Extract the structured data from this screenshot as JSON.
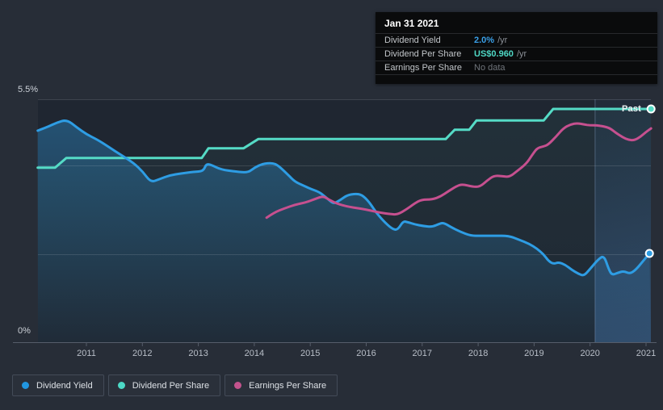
{
  "colors": {
    "background": "#272d37",
    "plot_background": "#1f2631",
    "accent_blue": "#2e9de4",
    "accent_teal": "#55dbc6",
    "accent_pink": "#c6508f",
    "tooltip_background": "#0a0b0c",
    "tooltip_value_blue": "#3aa0e8",
    "tooltip_value_teal": "#4fd8c5",
    "tooltip_no_data_gray": "#70757b"
  },
  "tooltip": {
    "date": "Jan 31 2021",
    "rows": [
      {
        "label": "Dividend Yield",
        "value": "2.0%",
        "suffix": "/yr",
        "value_color": "#3aa0e8"
      },
      {
        "label": "Dividend Per Share",
        "value": "US$0.960",
        "suffix": "/yr",
        "value_color": "#4fd8c5"
      },
      {
        "label": "Earnings Per Share",
        "value": "No data",
        "suffix": "",
        "value_color": "#70757b"
      }
    ]
  },
  "legend": [
    {
      "label": "Dividend Yield",
      "color": "#2196e0"
    },
    {
      "label": "Dividend Per Share",
      "color": "#4cd9c6"
    },
    {
      "label": "Earnings Per Share",
      "color": "#c3538d"
    }
  ],
  "chart_data": {
    "type": "line",
    "past_label": "Past",
    "grid": true,
    "legend_position": "bottom-left",
    "y_axis": {
      "min": 0,
      "max": 5.5,
      "min_label": "0%",
      "max_label": "5.5%",
      "gridline_values": [
        5.5,
        4.0,
        2.0,
        0
      ]
    },
    "x_axis": {
      "ticks": [
        2011,
        2012,
        2013,
        2014,
        2015,
        2016,
        2017,
        2018,
        2019,
        2020,
        2021
      ],
      "start": 2010.13,
      "end": 2021.09,
      "highlight_band_start": 2020.09
    },
    "series": [
      {
        "name": "Dividend Yield",
        "unit": "%",
        "color": "#2e9de4",
        "line_style": "smooth",
        "area_fill": true,
        "end_dot": true,
        "end_value": "2.0%",
        "points": [
          [
            2010.13,
            4.79
          ],
          [
            2010.32,
            4.88
          ],
          [
            2010.47,
            4.97
          ],
          [
            2010.65,
            5.04
          ],
          [
            2010.83,
            4.86
          ],
          [
            2011.01,
            4.7
          ],
          [
            2011.19,
            4.59
          ],
          [
            2011.4,
            4.42
          ],
          [
            2011.62,
            4.24
          ],
          [
            2011.84,
            4.06
          ],
          [
            2012.01,
            3.86
          ],
          [
            2012.15,
            3.62
          ],
          [
            2012.3,
            3.69
          ],
          [
            2012.49,
            3.78
          ],
          [
            2012.7,
            3.82
          ],
          [
            2012.92,
            3.86
          ],
          [
            2013.09,
            3.87
          ],
          [
            2013.14,
            4.04
          ],
          [
            2013.24,
            4.01
          ],
          [
            2013.4,
            3.91
          ],
          [
            2013.68,
            3.86
          ],
          [
            2013.89,
            3.84
          ],
          [
            2014.0,
            3.95
          ],
          [
            2014.15,
            4.04
          ],
          [
            2014.32,
            4.06
          ],
          [
            2014.43,
            4.0
          ],
          [
            2014.61,
            3.78
          ],
          [
            2014.72,
            3.64
          ],
          [
            2014.87,
            3.55
          ],
          [
            2015.01,
            3.47
          ],
          [
            2015.16,
            3.4
          ],
          [
            2015.27,
            3.29
          ],
          [
            2015.37,
            3.18
          ],
          [
            2015.43,
            3.14
          ],
          [
            2015.55,
            3.23
          ],
          [
            2015.66,
            3.33
          ],
          [
            2015.81,
            3.36
          ],
          [
            2015.92,
            3.34
          ],
          [
            2016.05,
            3.18
          ],
          [
            2016.19,
            2.91
          ],
          [
            2016.34,
            2.7
          ],
          [
            2016.47,
            2.56
          ],
          [
            2016.56,
            2.54
          ],
          [
            2016.66,
            2.74
          ],
          [
            2016.74,
            2.72
          ],
          [
            2016.86,
            2.67
          ],
          [
            2017.02,
            2.63
          ],
          [
            2017.18,
            2.61
          ],
          [
            2017.32,
            2.69
          ],
          [
            2017.39,
            2.7
          ],
          [
            2017.51,
            2.61
          ],
          [
            2017.68,
            2.5
          ],
          [
            2017.87,
            2.41
          ],
          [
            2018.04,
            2.41
          ],
          [
            2018.29,
            2.41
          ],
          [
            2018.55,
            2.41
          ],
          [
            2018.73,
            2.32
          ],
          [
            2018.91,
            2.23
          ],
          [
            2019.05,
            2.12
          ],
          [
            2019.17,
            1.99
          ],
          [
            2019.25,
            1.85
          ],
          [
            2019.34,
            1.77
          ],
          [
            2019.44,
            1.81
          ],
          [
            2019.56,
            1.75
          ],
          [
            2019.67,
            1.64
          ],
          [
            2019.79,
            1.55
          ],
          [
            2019.89,
            1.5
          ],
          [
            2020.0,
            1.66
          ],
          [
            2020.15,
            1.88
          ],
          [
            2020.25,
            1.96
          ],
          [
            2020.33,
            1.66
          ],
          [
            2020.39,
            1.52
          ],
          [
            2020.49,
            1.57
          ],
          [
            2020.6,
            1.61
          ],
          [
            2020.71,
            1.55
          ],
          [
            2020.81,
            1.63
          ],
          [
            2020.93,
            1.81
          ],
          [
            2021.06,
            2.01
          ]
        ]
      },
      {
        "name": "Dividend Per Share",
        "unit": "plotted on 0-5.5 band scale",
        "color": "#55dbc6",
        "line_style": "linear",
        "area_fill": false,
        "end_dot": true,
        "end_value": "US$0.960",
        "level_values_usd": [
          0.72,
          0.76,
          0.8,
          0.84,
          0.88,
          0.92,
          0.96
        ],
        "points": [
          [
            2010.13,
            3.95
          ],
          [
            2010.44,
            3.95
          ],
          [
            2010.64,
            4.17
          ],
          [
            2013.06,
            4.17
          ],
          [
            2013.18,
            4.39
          ],
          [
            2013.81,
            4.39
          ],
          [
            2014.07,
            4.6
          ],
          [
            2017.42,
            4.6
          ],
          [
            2017.58,
            4.81
          ],
          [
            2017.84,
            4.81
          ],
          [
            2017.97,
            5.02
          ],
          [
            2019.17,
            5.02
          ],
          [
            2019.34,
            5.28
          ],
          [
            2021.09,
            5.28
          ]
        ]
      },
      {
        "name": "Earnings Per Share",
        "unit": "plotted on 0-5.5 band scale",
        "color": "#c6508f",
        "line_style": "smooth",
        "area_fill": false,
        "end_dot": false,
        "end_value": "No data",
        "points": [
          [
            2014.22,
            2.82
          ],
          [
            2014.36,
            2.94
          ],
          [
            2014.54,
            3.03
          ],
          [
            2014.72,
            3.11
          ],
          [
            2014.91,
            3.16
          ],
          [
            2015.08,
            3.24
          ],
          [
            2015.23,
            3.31
          ],
          [
            2015.33,
            3.23
          ],
          [
            2015.47,
            3.14
          ],
          [
            2015.66,
            3.07
          ],
          [
            2015.88,
            3.03
          ],
          [
            2016.08,
            2.98
          ],
          [
            2016.26,
            2.93
          ],
          [
            2016.44,
            2.9
          ],
          [
            2016.56,
            2.89
          ],
          [
            2016.72,
            3.01
          ],
          [
            2016.86,
            3.14
          ],
          [
            2016.99,
            3.23
          ],
          [
            2017.18,
            3.23
          ],
          [
            2017.33,
            3.3
          ],
          [
            2017.47,
            3.42
          ],
          [
            2017.61,
            3.53
          ],
          [
            2017.72,
            3.58
          ],
          [
            2017.9,
            3.52
          ],
          [
            2018.03,
            3.52
          ],
          [
            2018.16,
            3.66
          ],
          [
            2018.28,
            3.77
          ],
          [
            2018.42,
            3.76
          ],
          [
            2018.56,
            3.74
          ],
          [
            2018.7,
            3.88
          ],
          [
            2018.86,
            4.04
          ],
          [
            2018.96,
            4.23
          ],
          [
            2019.05,
            4.39
          ],
          [
            2019.16,
            4.43
          ],
          [
            2019.25,
            4.47
          ],
          [
            2019.39,
            4.65
          ],
          [
            2019.52,
            4.84
          ],
          [
            2019.65,
            4.93
          ],
          [
            2019.77,
            4.96
          ],
          [
            2019.89,
            4.93
          ],
          [
            2020.0,
            4.91
          ],
          [
            2020.12,
            4.91
          ],
          [
            2020.23,
            4.89
          ],
          [
            2020.35,
            4.85
          ],
          [
            2020.46,
            4.74
          ],
          [
            2020.58,
            4.64
          ],
          [
            2020.69,
            4.58
          ],
          [
            2020.79,
            4.57
          ],
          [
            2020.9,
            4.65
          ],
          [
            2021.0,
            4.76
          ],
          [
            2021.09,
            4.84
          ]
        ]
      }
    ]
  }
}
